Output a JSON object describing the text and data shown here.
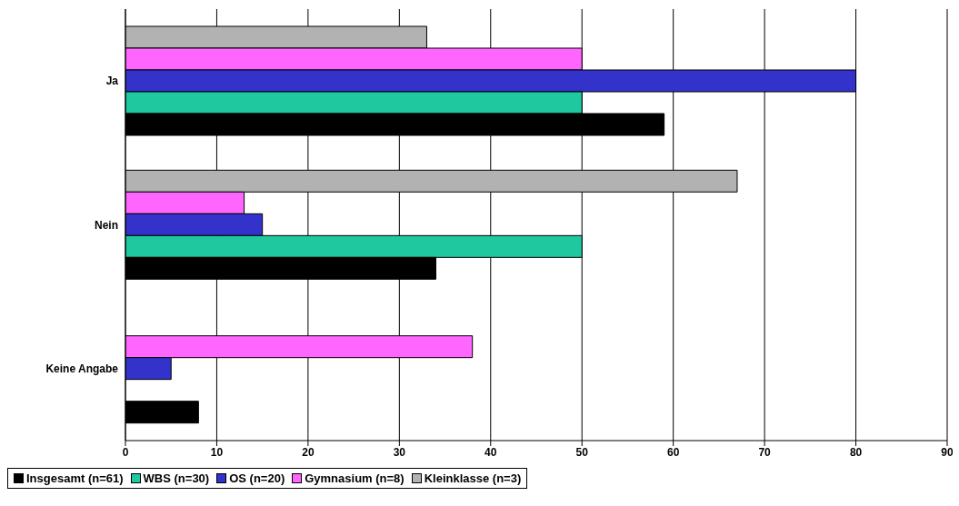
{
  "chart_data": {
    "type": "bar",
    "orientation": "horizontal",
    "categories": [
      "Ja",
      "Nein",
      "Keine Angabe"
    ],
    "series": [
      {
        "name": "Insgesamt (n=61)",
        "color": "#000000",
        "values": [
          59,
          34,
          8
        ]
      },
      {
        "name": "WBS (n=30)",
        "color": "#20c8a0",
        "values": [
          50,
          50,
          0
        ]
      },
      {
        "name": "OS (n=20)",
        "color": "#3333cc",
        "values": [
          80,
          15,
          5
        ]
      },
      {
        "name": "Gymnasium (n=8)",
        "color": "#ff66ff",
        "values": [
          50,
          13,
          38
        ]
      },
      {
        "name": "Kleinklasse (n=3)",
        "color": "#b2b2b2",
        "values": [
          33,
          67,
          0
        ]
      }
    ],
    "xlim": [
      0,
      90
    ],
    "xticks": [
      0,
      10,
      20,
      30,
      40,
      50,
      60,
      70,
      80,
      90
    ],
    "grid": "x",
    "legend": "bottom"
  }
}
